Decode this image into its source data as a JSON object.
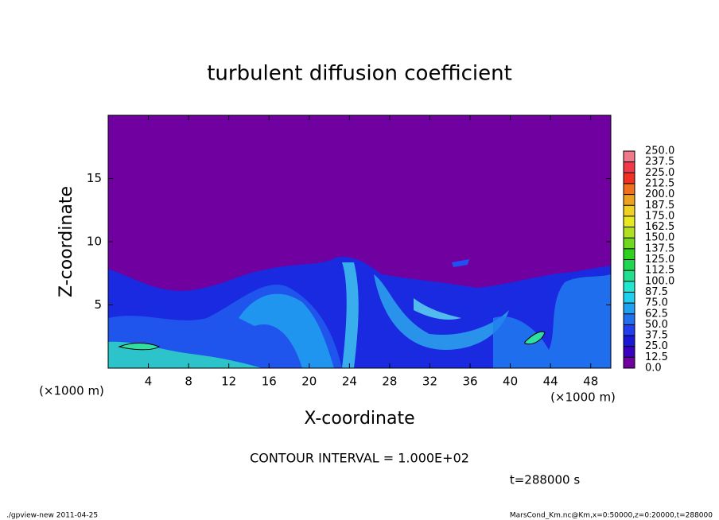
{
  "chart_data": {
    "type": "contour",
    "title": "turbulent diffusion coefficient",
    "xlabel": "X-coordinate",
    "ylabel": "Z-coordinate",
    "x_unit": "(×1000 m)",
    "y_unit": "(×1000 m)",
    "xlim": [
      0,
      50
    ],
    "ylim": [
      0,
      20
    ],
    "xticks": [
      4,
      8,
      12,
      16,
      20,
      24,
      28,
      32,
      36,
      40,
      44,
      48
    ],
    "yticks": [
      5,
      10,
      15
    ],
    "colorbar": {
      "levels": [
        {
          "value": 0,
          "label": "0.0"
        },
        {
          "value": 12.5,
          "label": "12.5"
        },
        {
          "value": 25,
          "label": "25.0"
        },
        {
          "value": 37.5,
          "label": "37.5"
        },
        {
          "value": 50,
          "label": "50.0"
        },
        {
          "value": 62.5,
          "label": "62.5"
        },
        {
          "value": 75,
          "label": "75.0"
        },
        {
          "value": 87.5,
          "label": "87.5"
        },
        {
          "value": 100,
          "label": "100.0"
        },
        {
          "value": 112.5,
          "label": "112.5"
        },
        {
          "value": 125,
          "label": "125.0"
        },
        {
          "value": 137.5,
          "label": "137.5"
        },
        {
          "value": 150,
          "label": "150.0"
        },
        {
          "value": 162.5,
          "label": "162.5"
        },
        {
          "value": 175,
          "label": "175.0"
        },
        {
          "value": 187.5,
          "label": "187.5"
        },
        {
          "value": 200,
          "label": "200.0"
        },
        {
          "value": 212.5,
          "label": "212.5"
        },
        {
          "value": 225,
          "label": "225.0"
        },
        {
          "value": 237.5,
          "label": "237.5"
        },
        {
          "value": 250,
          "label": "250.0"
        }
      ],
      "colors": [
        "#7000a0",
        "#3a00c0",
        "#1818d8",
        "#2040f0",
        "#2070f0",
        "#20a0f0",
        "#20cff0",
        "#20e8d0",
        "#20e090",
        "#20d850",
        "#30d020",
        "#70d820",
        "#b0e020",
        "#e8e820",
        "#f0d020",
        "#f0a020",
        "#f07020",
        "#f03020",
        "#f03848",
        "#f07888"
      ]
    },
    "annotation": "CONTOUR INTERVAL = 1.000E+02",
    "time_label": "t=288000 s",
    "footer_left": "./gpview-new   2011-04-25",
    "footer_right": "MarsCond_Km.nc@Km,x=0:50000,z=0:20000,t=288000"
  }
}
